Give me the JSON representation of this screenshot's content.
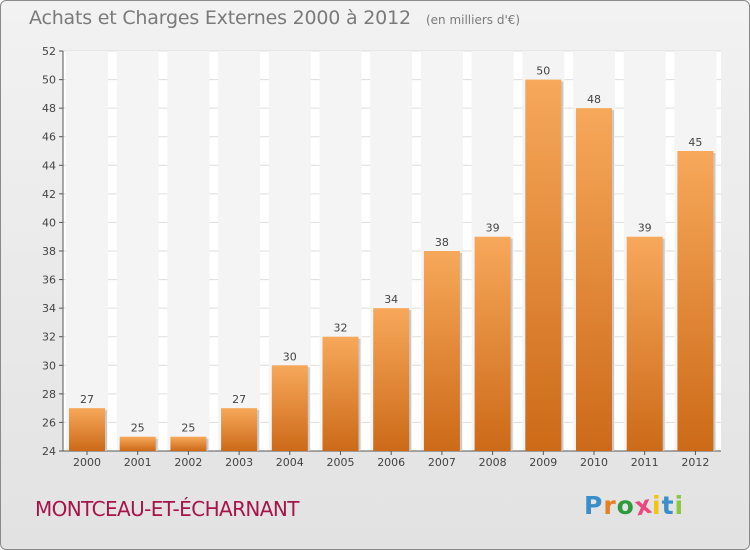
{
  "chart_data": {
    "type": "bar",
    "title": "Achats et Charges Externes 2000 à 2012",
    "subtitle": "(en milliers d'€)",
    "categories": [
      "2000",
      "2001",
      "2002",
      "2003",
      "2004",
      "2005",
      "2006",
      "2007",
      "2008",
      "2009",
      "2010",
      "2011",
      "2012"
    ],
    "values": [
      27,
      25,
      25,
      27,
      30,
      32,
      34,
      38,
      39,
      50,
      48,
      39,
      45
    ],
    "ylim": [
      24,
      52
    ],
    "yticks": [
      24,
      26,
      28,
      30,
      32,
      34,
      36,
      38,
      40,
      42,
      44,
      46,
      48,
      50,
      52
    ],
    "grid": true,
    "bar_color_top": "#f7a85a",
    "bar_color_bottom": "#cc6a18"
  },
  "footer": {
    "commune": "MONTCEAU-ET-ÉCHARNANT",
    "commune_color": "#a8134a"
  },
  "logo": {
    "text": "Proxiti",
    "letter_colors": [
      "#3a8ec9",
      "#e67e22",
      "#2e9b3a",
      "#e84a7f",
      "#f1c40f",
      "#3a8ec9",
      "#8dc63f"
    ]
  }
}
